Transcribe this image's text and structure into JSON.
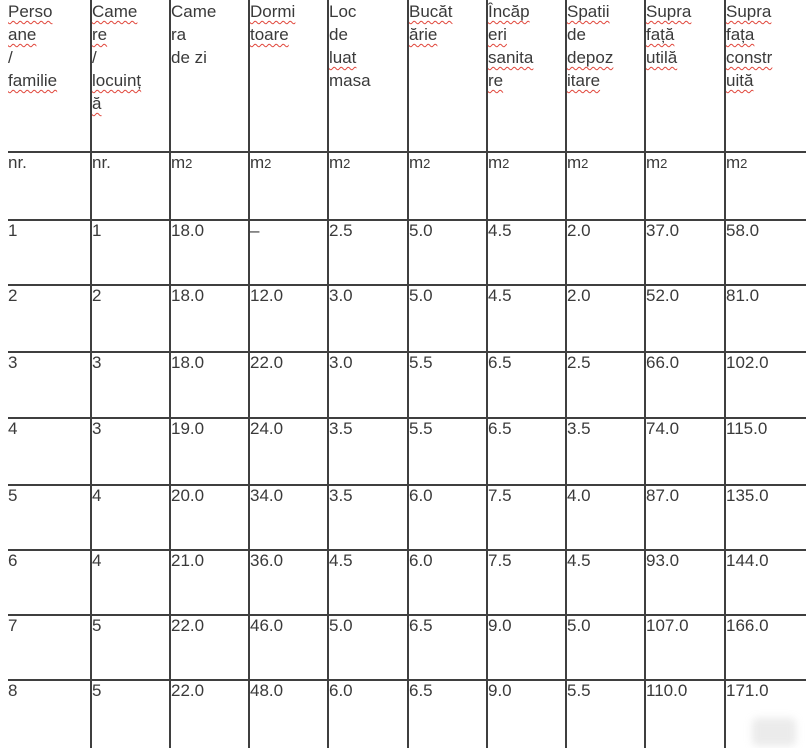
{
  "colors": {
    "text": "#3a3a3a",
    "border": "#3f3f3f",
    "squiggle": "#e0453a",
    "background": "#ffffff"
  },
  "table": {
    "columns": [
      {
        "id": "persoane-familie",
        "label": "Persoane / familie",
        "lines": [
          [
            "Perso",
            true
          ],
          [
            "ane",
            true
          ],
          [
            "/",
            false
          ],
          [
            "familie",
            true
          ]
        ],
        "unit": {
          "base": "nr.",
          "sub": ""
        }
      },
      {
        "id": "camere-locuinta",
        "label": "Camere / locuință",
        "lines": [
          [
            "Came",
            true
          ],
          [
            "re",
            true
          ],
          [
            "/",
            false
          ],
          [
            "locuinț",
            true
          ],
          [
            "ă",
            true
          ]
        ],
        "unit": {
          "base": "nr.",
          "sub": ""
        }
      },
      {
        "id": "camera-de-zi",
        "label": "Camera de zi",
        "lines": [
          [
            "Came",
            false
          ],
          [
            "ra",
            false
          ],
          [
            "de zi",
            false
          ]
        ],
        "unit": {
          "base": "m",
          "sub": "2"
        }
      },
      {
        "id": "dormitoare",
        "label": "Dormitoare",
        "lines": [
          [
            "Dormi",
            true
          ],
          [
            "toare",
            true
          ]
        ],
        "unit": {
          "base": "m",
          "sub": "2"
        }
      },
      {
        "id": "loc-de-luat-masa",
        "label": "Loc de luat masa",
        "lines": [
          [
            "Loc",
            false
          ],
          [
            "de",
            false
          ],
          [
            "luat",
            true
          ],
          [
            "masa",
            false
          ]
        ],
        "unit": {
          "base": "m",
          "sub": "2"
        }
      },
      {
        "id": "bucatarie",
        "label": "Bucătărie",
        "lines": [
          [
            "Bucăt",
            true
          ],
          [
            "ărie",
            true
          ]
        ],
        "unit": {
          "base": "m",
          "sub": "2"
        }
      },
      {
        "id": "incaperi-sanitare",
        "label": "Încăperi sanitare",
        "lines": [
          [
            "Încăp",
            true
          ],
          [
            "eri",
            true
          ],
          [
            "sanita",
            true
          ],
          [
            "re",
            true
          ]
        ],
        "unit": {
          "base": "m",
          "sub": "2"
        }
      },
      {
        "id": "spatii-de-depozitare",
        "label": "Spatii de depozitare",
        "lines": [
          [
            "Spatii",
            true
          ],
          [
            "de",
            false
          ],
          [
            "depoz",
            true
          ],
          [
            "itare",
            true
          ]
        ],
        "unit": {
          "base": "m",
          "sub": "2"
        }
      },
      {
        "id": "suprafata-utila",
        "label": "Suprafață utilă",
        "lines": [
          [
            "Supra",
            true
          ],
          [
            "față",
            true
          ],
          [
            "utilă",
            true
          ]
        ],
        "unit": {
          "base": "m",
          "sub": "2"
        }
      },
      {
        "id": "suprafata-construita",
        "label": "Suprafața construită",
        "lines": [
          [
            "Supra",
            true
          ],
          [
            "fața",
            true
          ],
          [
            "constr",
            true
          ],
          [
            "uită",
            true
          ]
        ],
        "unit": {
          "base": "m",
          "sub": "2"
        }
      }
    ],
    "rows": [
      [
        "1",
        "1",
        "18.0",
        "–",
        "2.5",
        "5.0",
        "4.5",
        "2.0",
        "37.0",
        "58.0"
      ],
      [
        "2",
        "2",
        "18.0",
        "12.0",
        "3.0",
        "5.0",
        "4.5",
        "2.0",
        "52.0",
        "81.0"
      ],
      [
        "3",
        "3",
        "18.0",
        "22.0",
        "3.0",
        "5.5",
        "6.5",
        "2.5",
        "66.0",
        "102.0"
      ],
      [
        "4",
        "3",
        "19.0",
        "24.0",
        "3.5",
        "5.5",
        "6.5",
        "3.5",
        "74.0",
        "115.0"
      ],
      [
        "5",
        "4",
        "20.0",
        "34.0",
        "3.5",
        "6.0",
        "7.5",
        "4.0",
        "87.0",
        "135.0"
      ],
      [
        "6",
        "4",
        "21.0",
        "36.0",
        "4.5",
        "6.0",
        "7.5",
        "4.5",
        "93.0",
        "144.0"
      ],
      [
        "7",
        "5",
        "22.0",
        "46.0",
        "5.0",
        "6.5",
        "9.0",
        "5.0",
        "107.0",
        "166.0"
      ],
      [
        "8",
        "5",
        "22.0",
        "48.0",
        "6.0",
        "6.5",
        "9.0",
        "5.5",
        "110.0",
        "171.0"
      ]
    ]
  }
}
